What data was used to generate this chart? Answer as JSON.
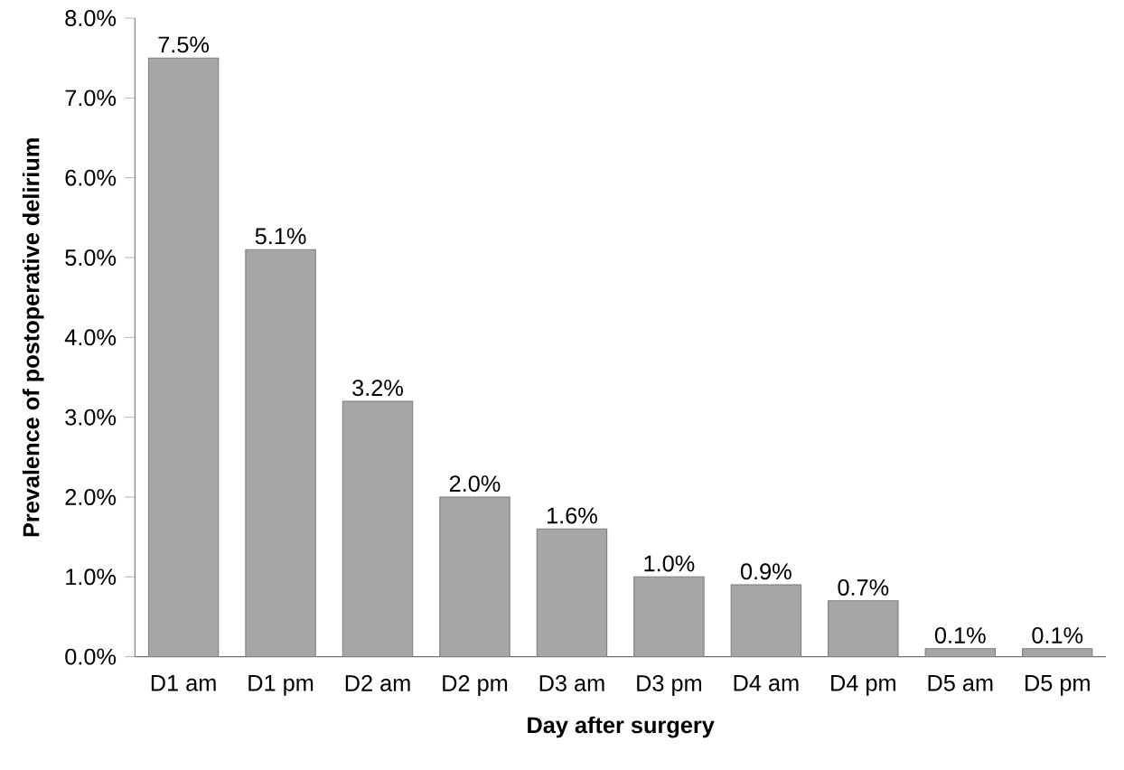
{
  "chart_data": {
    "type": "bar",
    "xlabel": "Day after surgery",
    "ylabel": "Prevalence of postoperative delirium",
    "categories": [
      "D1 am",
      "D1 pm",
      "D2 am",
      "D2 pm",
      "D3 am",
      "D3 pm",
      "D4 am",
      "D4 pm",
      "D5 am",
      "D5 pm"
    ],
    "values": [
      7.5,
      5.1,
      3.2,
      2.0,
      1.6,
      1.0,
      0.9,
      0.7,
      0.1,
      0.1
    ],
    "value_labels": [
      "7.5%",
      "5.1%",
      "3.2%",
      "2.0%",
      "1.6%",
      "1.0%",
      "0.9%",
      "0.7%",
      "0.1%",
      "0.1%"
    ],
    "color": "#a6a6a6",
    "ylim": [
      0,
      8
    ],
    "yticks": [
      {
        "value": 0,
        "label": "0.0%"
      },
      {
        "value": 1,
        "label": "1.0%"
      },
      {
        "value": 2,
        "label": "2.0%"
      },
      {
        "value": 3,
        "label": "3.0%"
      },
      {
        "value": 4,
        "label": "4.0%"
      },
      {
        "value": 5,
        "label": "5.0%"
      },
      {
        "value": 6,
        "label": "6.0%"
      },
      {
        "value": 7,
        "label": "7.0%"
      },
      {
        "value": 8,
        "label": "8.0%"
      }
    ],
    "grid": false
  }
}
